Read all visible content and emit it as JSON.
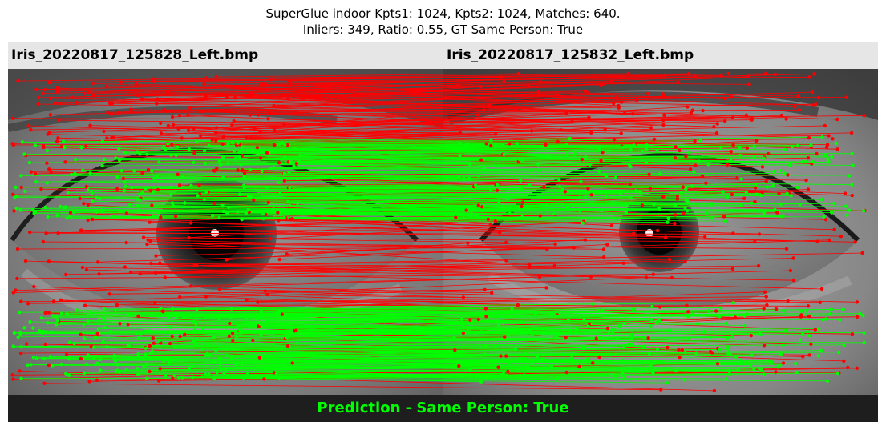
{
  "figure": {
    "title_line1": "SuperGlue indoor Kpts1: 1024, Kpts2: 1024, Matches: 640.",
    "title_line2": "Inliers: 349, Ratio: 0.55, GT Same Person: True"
  },
  "images": {
    "left_name": "Iris_20220817_125828_Left.bmp",
    "right_name": "Iris_20220817_125832_Left.bmp"
  },
  "prediction": {
    "label": "Prediction - Same Person: True",
    "color": "#00ff00"
  },
  "stats": {
    "keypoints_1": 1024,
    "keypoints_2": 1024,
    "matches": 640,
    "inliers": 349,
    "ratio": 0.55,
    "gt_same_person": true
  },
  "colors": {
    "inlier_line": "#00ff00",
    "outlier_line": "#ff0000",
    "name_bar_bg": "#e6e6e6",
    "prediction_bar_bg": "#1e1e1e"
  }
}
